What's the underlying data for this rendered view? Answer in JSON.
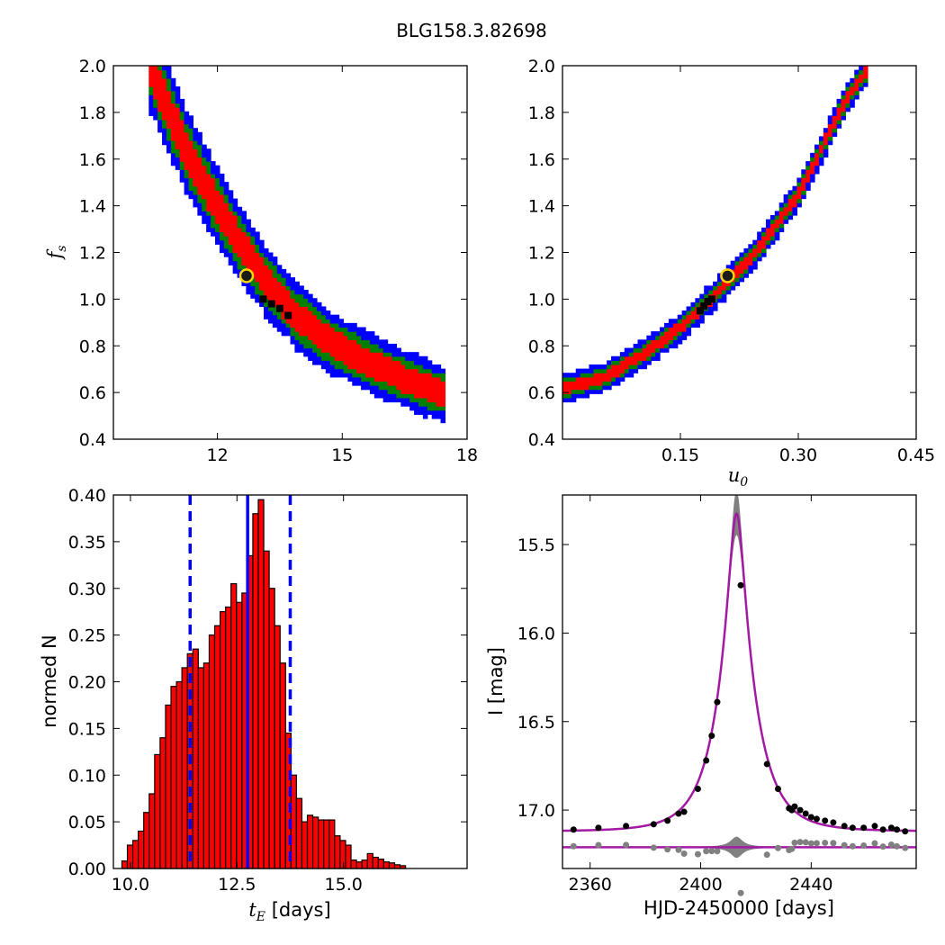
{
  "figure": {
    "title": "BLG158.3.82698"
  },
  "colors": {
    "blue": "#0000ff",
    "green": "#007f00",
    "red": "#ff0000",
    "black": "#000000",
    "marker_face": "#1a1a1a",
    "marker_ring": "#ffd700",
    "hist_fill": "#ff0000",
    "model": "#a319a3",
    "band": "#808080"
  },
  "chart_data": [
    {
      "type": "heatmap",
      "panel": "top-left",
      "xlabel": "",
      "ylabel": "f_s",
      "xlim": [
        9.5,
        18
      ],
      "ylim": [
        0.4,
        2.0
      ],
      "xticks": [
        12,
        15,
        18
      ],
      "yticks": [
        0.4,
        0.6,
        0.8,
        1.0,
        1.2,
        1.4,
        1.6,
        1.8,
        2.0
      ],
      "ytick_labels": [
        "0.4",
        "0.6",
        "0.8",
        "1.0",
        "1.2",
        "1.4",
        "1.6",
        "1.8",
        "2.0"
      ],
      "best_fit": {
        "x": 12.7,
        "y": 1.1
      },
      "high_density": [
        [
          13.1,
          1.0
        ],
        [
          13.3,
          0.98
        ],
        [
          13.5,
          0.96
        ],
        [
          13.7,
          0.93
        ]
      ],
      "band_center": [
        [
          10.4,
          2.0
        ],
        [
          10.8,
          1.82
        ],
        [
          11.3,
          1.62
        ],
        [
          11.9,
          1.43
        ],
        [
          12.5,
          1.25
        ],
        [
          13.2,
          1.07
        ],
        [
          13.9,
          0.93
        ],
        [
          14.7,
          0.82
        ],
        [
          15.5,
          0.74
        ],
        [
          16.5,
          0.66
        ],
        [
          17.5,
          0.59
        ]
      ],
      "band_halfwidth": [
        0.26,
        0.18,
        0.12
      ]
    },
    {
      "type": "heatmap",
      "panel": "top-right",
      "xlabel": "u_0",
      "ylabel": "",
      "xlim": [
        0.0,
        0.45
      ],
      "ylim": [
        0.4,
        2.0
      ],
      "xticks": [
        0.15,
        0.3,
        0.45
      ],
      "xtick_labels": [
        "0.15",
        "0.30",
        "0.45"
      ],
      "yticks": [
        0.4,
        0.6,
        0.8,
        1.0,
        1.2,
        1.4,
        1.6,
        1.8,
        2.0
      ],
      "ytick_labels": [
        "0.4",
        "0.6",
        "0.8",
        "1.0",
        "1.2",
        "1.4",
        "1.6",
        "1.8",
        "2.0"
      ],
      "best_fit": {
        "x": 0.21,
        "y": 1.1
      },
      "high_density": [
        [
          0.175,
          0.95
        ],
        [
          0.18,
          0.97
        ],
        [
          0.185,
          0.99
        ],
        [
          0.19,
          1.0
        ]
      ],
      "band_center": [
        [
          0.0,
          0.62
        ],
        [
          0.05,
          0.66
        ],
        [
          0.1,
          0.76
        ],
        [
          0.15,
          0.88
        ],
        [
          0.2,
          1.04
        ],
        [
          0.25,
          1.22
        ],
        [
          0.3,
          1.45
        ],
        [
          0.33,
          1.65
        ],
        [
          0.36,
          1.85
        ],
        [
          0.39,
          2.0
        ]
      ],
      "band_halfwidth": [
        0.028,
        0.018,
        0.011
      ]
    },
    {
      "type": "bar",
      "panel": "bottom-left",
      "xlabel": "t_E [days]",
      "ylabel": "normed N",
      "xlim": [
        9.6,
        17.9
      ],
      "ylim": [
        0.0,
        0.4
      ],
      "xticks": [
        10.0,
        12.5,
        15.0
      ],
      "xtick_labels": [
        "10.0",
        "12.5",
        "15.0"
      ],
      "yticks": [
        0.0,
        0.05,
        0.1,
        0.15,
        0.2,
        0.25,
        0.3,
        0.35,
        0.4
      ],
      "ytick_labels": [
        "0.00",
        "0.05",
        "0.10",
        "0.15",
        "0.20",
        "0.25",
        "0.30",
        "0.35",
        "0.40"
      ],
      "bin_start": 9.8,
      "bin_width": 0.128,
      "values": [
        0.008,
        0.025,
        0.03,
        0.04,
        0.06,
        0.08,
        0.122,
        0.14,
        0.175,
        0.195,
        0.2,
        0.215,
        0.23,
        0.235,
        0.215,
        0.22,
        0.25,
        0.26,
        0.275,
        0.28,
        0.305,
        0.285,
        0.295,
        0.335,
        0.38,
        0.395,
        0.34,
        0.3,
        0.26,
        0.22,
        0.145,
        0.1,
        0.075,
        0.05,
        0.057,
        0.055,
        0.052,
        0.052,
        0.052,
        0.035,
        0.03,
        0.025,
        0.009,
        0.007,
        0.009,
        0.016,
        0.012,
        0.01,
        0.007,
        0.006,
        0.004,
        0.003
      ],
      "median_line": 12.75,
      "interval_lines": [
        11.4,
        13.75
      ]
    },
    {
      "type": "line",
      "panel": "bottom-right",
      "xlabel": "HJD-2450000 [days]",
      "ylabel": "I [mag]",
      "xlim": [
        2350,
        2478
      ],
      "ylim": [
        17.33,
        15.22
      ],
      "y_inverted": true,
      "xticks": [
        2360,
        2400,
        2440
      ],
      "xtick_labels": [
        "2360",
        "2400",
        "2440"
      ],
      "yticks": [
        15.5,
        16.0,
        16.5,
        17.0
      ],
      "ytick_labels": [
        "15.5",
        "16.0",
        "16.5",
        "17.0"
      ],
      "model": {
        "t0": 2413.0,
        "tE": 12.7,
        "u0": 0.21,
        "baseline": 17.12,
        "fs": 1.1
      },
      "residual_baseline": 17.21,
      "observations": [
        [
          2354,
          17.11
        ],
        [
          2363,
          17.1
        ],
        [
          2373,
          17.09
        ],
        [
          2383,
          17.08
        ],
        [
          2388,
          17.06
        ],
        [
          2392,
          17.02
        ],
        [
          2394,
          17.01
        ],
        [
          2399,
          16.88
        ],
        [
          2402,
          16.72
        ],
        [
          2404,
          16.58
        ],
        [
          2406,
          16.39
        ],
        [
          2414.5,
          15.73
        ],
        [
          2424,
          16.74
        ],
        [
          2428,
          16.88
        ],
        [
          2432,
          16.99
        ],
        [
          2433,
          17.0
        ],
        [
          2434,
          16.98
        ],
        [
          2436,
          17.0
        ],
        [
          2438,
          17.02
        ],
        [
          2440,
          17.04
        ],
        [
          2442,
          17.05
        ],
        [
          2445,
          17.06
        ],
        [
          2448,
          17.07
        ],
        [
          2452,
          17.09
        ],
        [
          2455,
          17.1
        ],
        [
          2459,
          17.1
        ],
        [
          2463,
          17.09
        ],
        [
          2466,
          17.11
        ],
        [
          2469,
          17.1
        ],
        [
          2471,
          17.11
        ],
        [
          2474,
          17.12
        ]
      ]
    }
  ]
}
